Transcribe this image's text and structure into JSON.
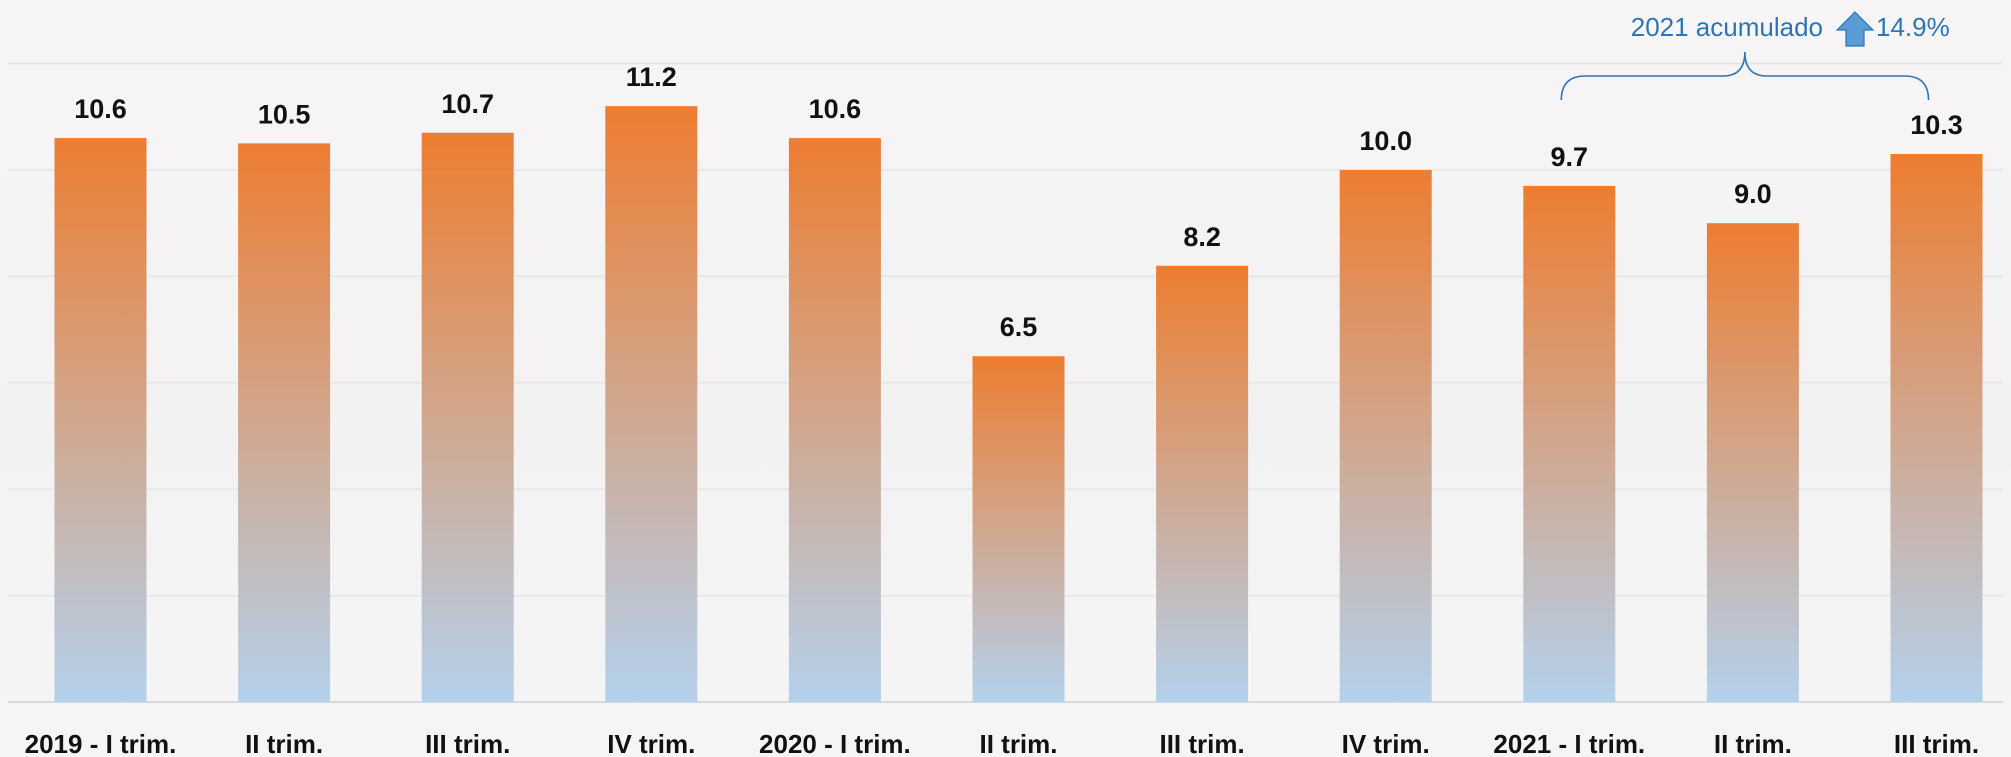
{
  "chart_data": {
    "type": "bar",
    "categories": [
      "2019 - I trim.",
      "II trim.",
      "III trim.",
      "IV trim.",
      "2020 - I trim.",
      "II trim.",
      "III trim.",
      "IV trim.",
      "2021 - I trim.",
      "II trim.",
      "III trim."
    ],
    "values": [
      10.6,
      10.5,
      10.7,
      11.2,
      10.6,
      6.5,
      8.2,
      10.0,
      9.7,
      9.0,
      10.3
    ],
    "value_labels": [
      "10.6",
      "10.5",
      "10.7",
      "11.2",
      "10.6",
      "6.5",
      "8.2",
      "10.0",
      "9.7",
      "9.0",
      "10.3"
    ],
    "ylim": [
      0,
      13
    ],
    "grid": true,
    "title": "",
    "xlabel": "",
    "ylabel": "",
    "annotation": {
      "label": "2021 acumulado",
      "value": "14.9%",
      "icon": "arrow-up-icon",
      "spans_categories": [
        8,
        10
      ]
    },
    "colors": {
      "bar_top": "#ed7d31",
      "bar_bottom": "#b4d1ec",
      "annotation": "#2e75b6",
      "arrow_fill": "#5b9bd5",
      "grid": "#e4e4e8"
    }
  }
}
